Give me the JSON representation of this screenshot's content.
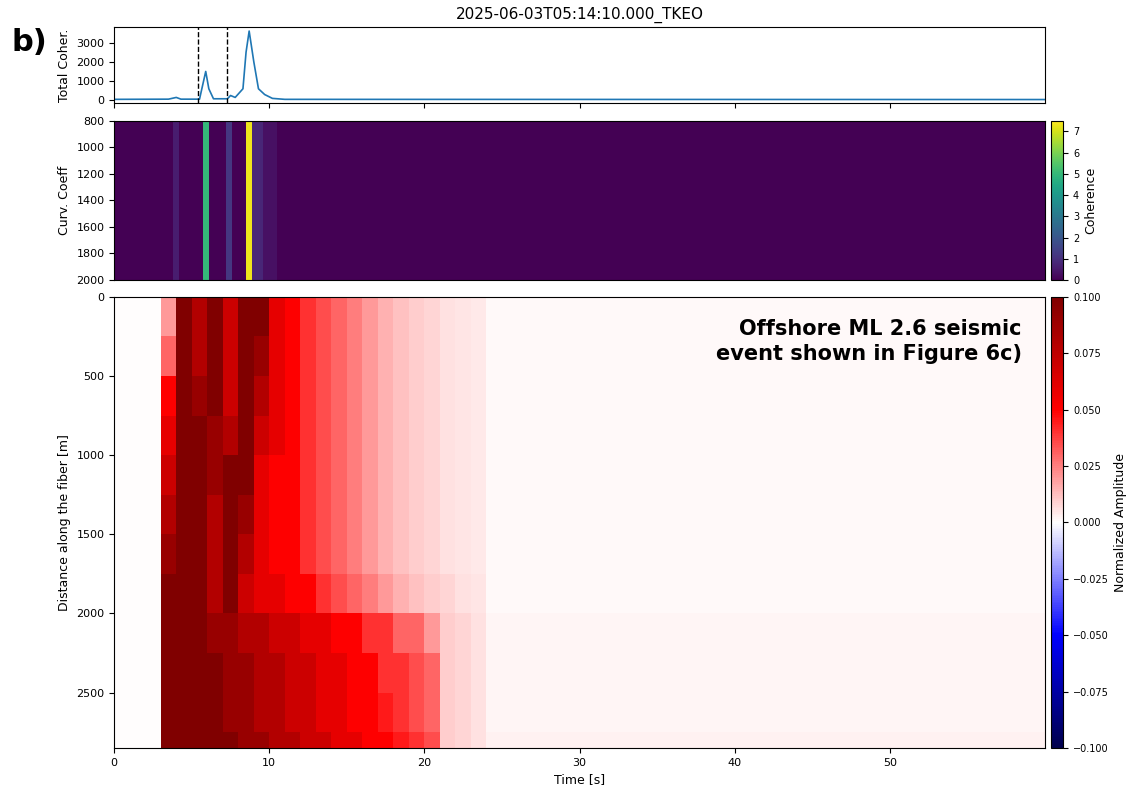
{
  "panel_label": "b)",
  "chart_data": [
    {
      "type": "line",
      "title": "2025-06-03T05:14:10.000_TKEO",
      "y_label": "Total Coher.",
      "x": [
        0,
        3.5,
        4.0,
        4.3,
        5.5,
        5.9,
        6.1,
        6.4,
        7.3,
        7.5,
        7.8,
        8.3,
        8.5,
        8.7,
        9.0,
        9.3,
        9.7,
        10.2,
        11,
        60
      ],
      "values": [
        50,
        60,
        150,
        60,
        60,
        1500,
        600,
        80,
        80,
        250,
        150,
        600,
        2500,
        3600,
        2000,
        600,
        300,
        100,
        50,
        40
      ],
      "color": "#1f77b4",
      "vlines": [
        5.4,
        7.3
      ],
      "xlim": [
        0,
        60
      ],
      "xticks": [
        0,
        10,
        20,
        30,
        40,
        50
      ],
      "ylim": [
        -150,
        3800
      ],
      "yticks": [
        0,
        1000,
        2000,
        3000
      ],
      "tick_labels": "y"
    },
    {
      "type": "heatmap",
      "y_label": "Curv. Coeff",
      "x_edges": [
        0,
        3.8,
        4.2,
        5.7,
        6.1,
        7.2,
        7.6,
        8.5,
        8.9,
        9.6,
        10.5,
        60
      ],
      "y_edges": [
        800,
        2000
      ],
      "cells": [
        [
          0,
          0.6,
          0,
          5,
          0,
          1.2,
          0,
          7.3,
          0.8,
          0.3,
          0
        ]
      ],
      "xlim": [
        0,
        60
      ],
      "xticks": [],
      "ylim": [
        2000,
        800
      ],
      "yticks": [
        800,
        1000,
        1200,
        1400,
        1600,
        1800,
        2000
      ],
      "tick_labels": "y",
      "colorbar": {
        "label": "Coherence",
        "range": [
          0,
          7.5
        ],
        "ticks": [
          0,
          1,
          2,
          3,
          4,
          5,
          6,
          7
        ],
        "color": "viridis"
      }
    },
    {
      "type": "heatmap",
      "x_label": "Time [s]",
      "y_label": "Distance along the fiber [m]",
      "annotation": "Offshore ML 2.6 seismic\nevent shown in Figure 6c)",
      "x_edges": [
        0,
        1,
        2,
        3,
        4,
        5,
        6,
        7,
        8,
        9,
        10,
        11,
        12,
        13,
        14,
        15,
        16,
        17,
        18,
        19,
        20,
        21,
        22,
        23,
        24,
        60
      ],
      "y_edges": [
        0,
        250,
        500,
        750,
        1000,
        1250,
        1500,
        1750,
        2000,
        2250,
        2500,
        2750,
        2850
      ],
      "cells": [
        [
          0,
          0,
          0,
          0.02,
          0.1,
          0.08,
          0.1,
          0.07,
          0.1,
          0.1,
          0.06,
          0.05,
          0.04,
          0.035,
          0.03,
          0.025,
          0.02,
          0.015,
          0.012,
          0.01,
          0.008,
          0.006,
          0.005,
          0.004,
          0.001
        ],
        [
          0,
          0,
          0,
          0.03,
          0.1,
          0.08,
          0.1,
          0.07,
          0.1,
          0.09,
          0.06,
          0.05,
          0.04,
          0.035,
          0.03,
          0.025,
          0.02,
          0.015,
          0.012,
          0.01,
          0.008,
          0.006,
          0.005,
          0.004,
          0.001
        ],
        [
          0,
          0,
          0,
          0.05,
          0.1,
          0.09,
          0.1,
          0.07,
          0.1,
          0.08,
          0.06,
          0.05,
          0.04,
          0.035,
          0.03,
          0.025,
          0.02,
          0.015,
          0.012,
          0.01,
          0.008,
          0.006,
          0.005,
          0.004,
          0.001
        ],
        [
          0,
          0,
          0,
          0.06,
          0.1,
          0.1,
          0.09,
          0.08,
          0.1,
          0.07,
          0.06,
          0.05,
          0.04,
          0.035,
          0.03,
          0.025,
          0.02,
          0.015,
          0.012,
          0.01,
          0.008,
          0.006,
          0.005,
          0.004,
          0.001
        ],
        [
          0,
          0,
          0,
          0.07,
          0.1,
          0.1,
          0.09,
          0.1,
          0.1,
          0.06,
          0.05,
          0.05,
          0.04,
          0.035,
          0.03,
          0.025,
          0.02,
          0.015,
          0.012,
          0.01,
          0.008,
          0.006,
          0.005,
          0.004,
          0.001
        ],
        [
          0,
          0,
          0,
          0.08,
          0.1,
          0.1,
          0.08,
          0.1,
          0.09,
          0.06,
          0.05,
          0.05,
          0.04,
          0.035,
          0.03,
          0.025,
          0.02,
          0.015,
          0.012,
          0.01,
          0.008,
          0.006,
          0.005,
          0.004,
          0.001
        ],
        [
          0,
          0,
          0,
          0.09,
          0.1,
          0.1,
          0.08,
          0.1,
          0.08,
          0.06,
          0.05,
          0.05,
          0.04,
          0.035,
          0.03,
          0.025,
          0.02,
          0.015,
          0.012,
          0.01,
          0.008,
          0.006,
          0.005,
          0.004,
          0.001
        ],
        [
          0,
          0,
          0,
          0.1,
          0.1,
          0.1,
          0.08,
          0.1,
          0.07,
          0.06,
          0.06,
          0.05,
          0.05,
          0.04,
          0.035,
          0.03,
          0.025,
          0.02,
          0.015,
          0.012,
          0.01,
          0.008,
          0.006,
          0.005,
          0.001
        ],
        [
          0,
          0,
          0,
          0.1,
          0.1,
          0.1,
          0.09,
          0.09,
          0.08,
          0.08,
          0.07,
          0.07,
          0.06,
          0.06,
          0.05,
          0.05,
          0.04,
          0.04,
          0.03,
          0.03,
          0.02,
          0.01,
          0.008,
          0.006,
          0.002
        ],
        [
          0,
          0,
          0,
          0.1,
          0.1,
          0.1,
          0.1,
          0.09,
          0.09,
          0.08,
          0.08,
          0.07,
          0.07,
          0.06,
          0.06,
          0.05,
          0.05,
          0.04,
          0.04,
          0.035,
          0.03,
          0.01,
          0.008,
          0.006,
          0.002
        ],
        [
          0,
          0,
          0,
          0.1,
          0.1,
          0.1,
          0.1,
          0.09,
          0.09,
          0.08,
          0.08,
          0.07,
          0.07,
          0.06,
          0.06,
          0.05,
          0.05,
          0.045,
          0.04,
          0.035,
          0.03,
          0.01,
          0.008,
          0.006,
          0.002
        ],
        [
          0,
          0,
          0,
          0.1,
          0.1,
          0.1,
          0.1,
          0.1,
          0.09,
          0.09,
          0.08,
          0.08,
          0.07,
          0.07,
          0.06,
          0.06,
          0.05,
          0.05,
          0.045,
          0.04,
          0.035,
          0.01,
          0.008,
          0.006,
          0.003
        ]
      ],
      "xlim": [
        0,
        60
      ],
      "xticks": [
        0,
        10,
        20,
        30,
        40,
        50
      ],
      "ylim": [
        2850,
        0
      ],
      "yticks": [
        0,
        500,
        1000,
        1500,
        2000,
        2500
      ],
      "colorbar": {
        "label": "Normalized Amplitude",
        "range": [
          -0.1,
          0.1
        ],
        "ticks": [
          {
            "value": -0.1,
            "label": "−0.100"
          },
          {
            "value": -0.075,
            "label": "−0.075"
          },
          {
            "value": -0.05,
            "label": "−0.050"
          },
          {
            "value": -0.025,
            "label": "−0.025"
          },
          {
            "value": 0,
            "label": "0.000"
          },
          {
            "value": 0.025,
            "label": "0.025"
          },
          {
            "value": 0.05,
            "label": "0.050"
          },
          {
            "value": 0.075,
            "label": "0.075"
          },
          {
            "value": 0.1,
            "label": "0.100"
          }
        ],
        "color": "seismic"
      }
    }
  ]
}
